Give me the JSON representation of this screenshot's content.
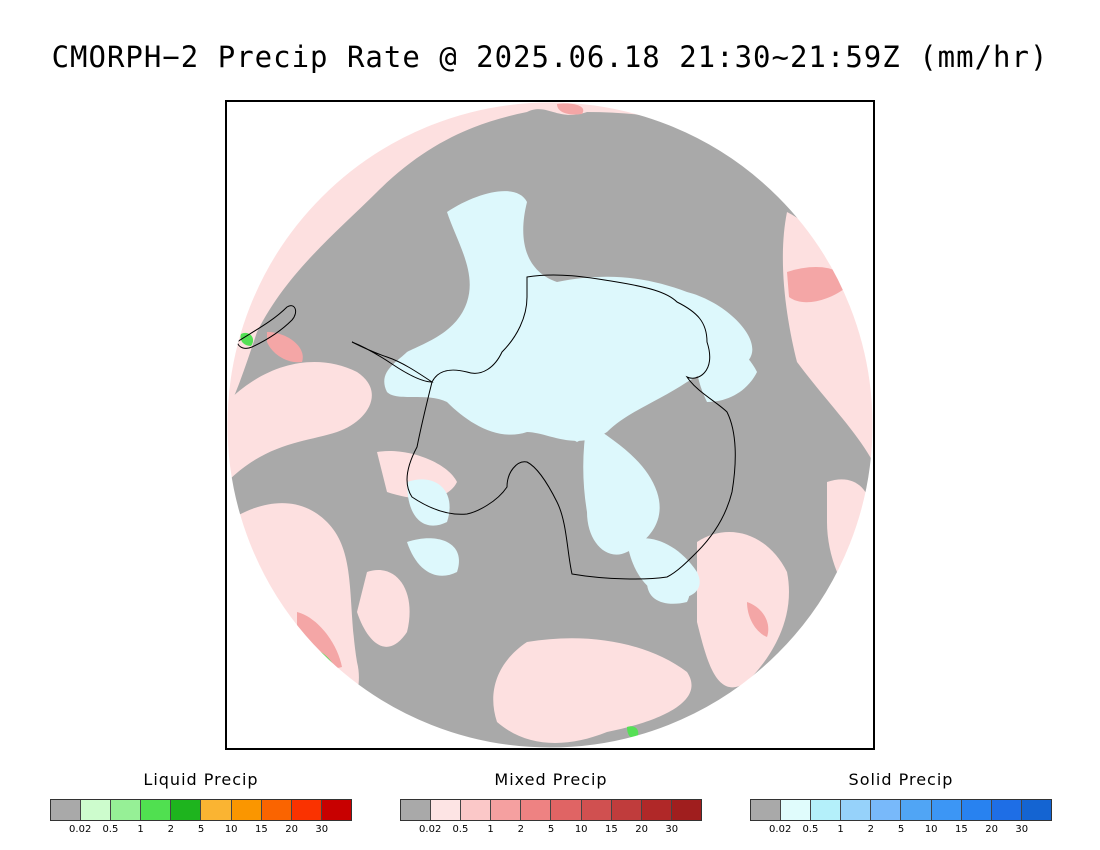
{
  "title": "CMORPH−2 Precip Rate @ 2025.06.18 21:30~21:59Z (mm/hr)",
  "map": {
    "colors": {
      "no_precip": "#a9a9a9",
      "mixed_light": "#fde0e0",
      "mixed_mid": "#f4a6a6",
      "mixed_strong": "#e06a6a",
      "solid_light": "#ddf8fc",
      "liquid": "#55e055",
      "coastline": "#000000"
    }
  },
  "legends": [
    {
      "title": "Liquid Precip",
      "colors": [
        "#a9a9a9",
        "#cdfccd",
        "#96f096",
        "#50e050",
        "#1eb41e",
        "#fab432",
        "#fa9600",
        "#fa6400",
        "#fa3200",
        "#c80000"
      ],
      "ticks": [
        "0.02",
        "0.5",
        "1",
        "2",
        "5",
        "10",
        "15",
        "20",
        "30"
      ]
    },
    {
      "title": "Mixed Precip",
      "colors": [
        "#a9a9a9",
        "#fde4e4",
        "#fbc8c8",
        "#f5a0a0",
        "#ee8282",
        "#e06464",
        "#d05050",
        "#c03c3c",
        "#b02828",
        "#a01e1e"
      ],
      "ticks": [
        "0.02",
        "0.5",
        "1",
        "2",
        "5",
        "10",
        "15",
        "20",
        "30"
      ]
    },
    {
      "title": "Solid Precip",
      "colors": [
        "#a9a9a9",
        "#e0fcfc",
        "#b4f0fa",
        "#96d2fa",
        "#78b9fa",
        "#50a5f5",
        "#3c96f5",
        "#2882f0",
        "#1e6ee6",
        "#1464d2"
      ],
      "ticks": [
        "0.02",
        "0.5",
        "1",
        "2",
        "5",
        "10",
        "15",
        "20",
        "30"
      ]
    }
  ]
}
